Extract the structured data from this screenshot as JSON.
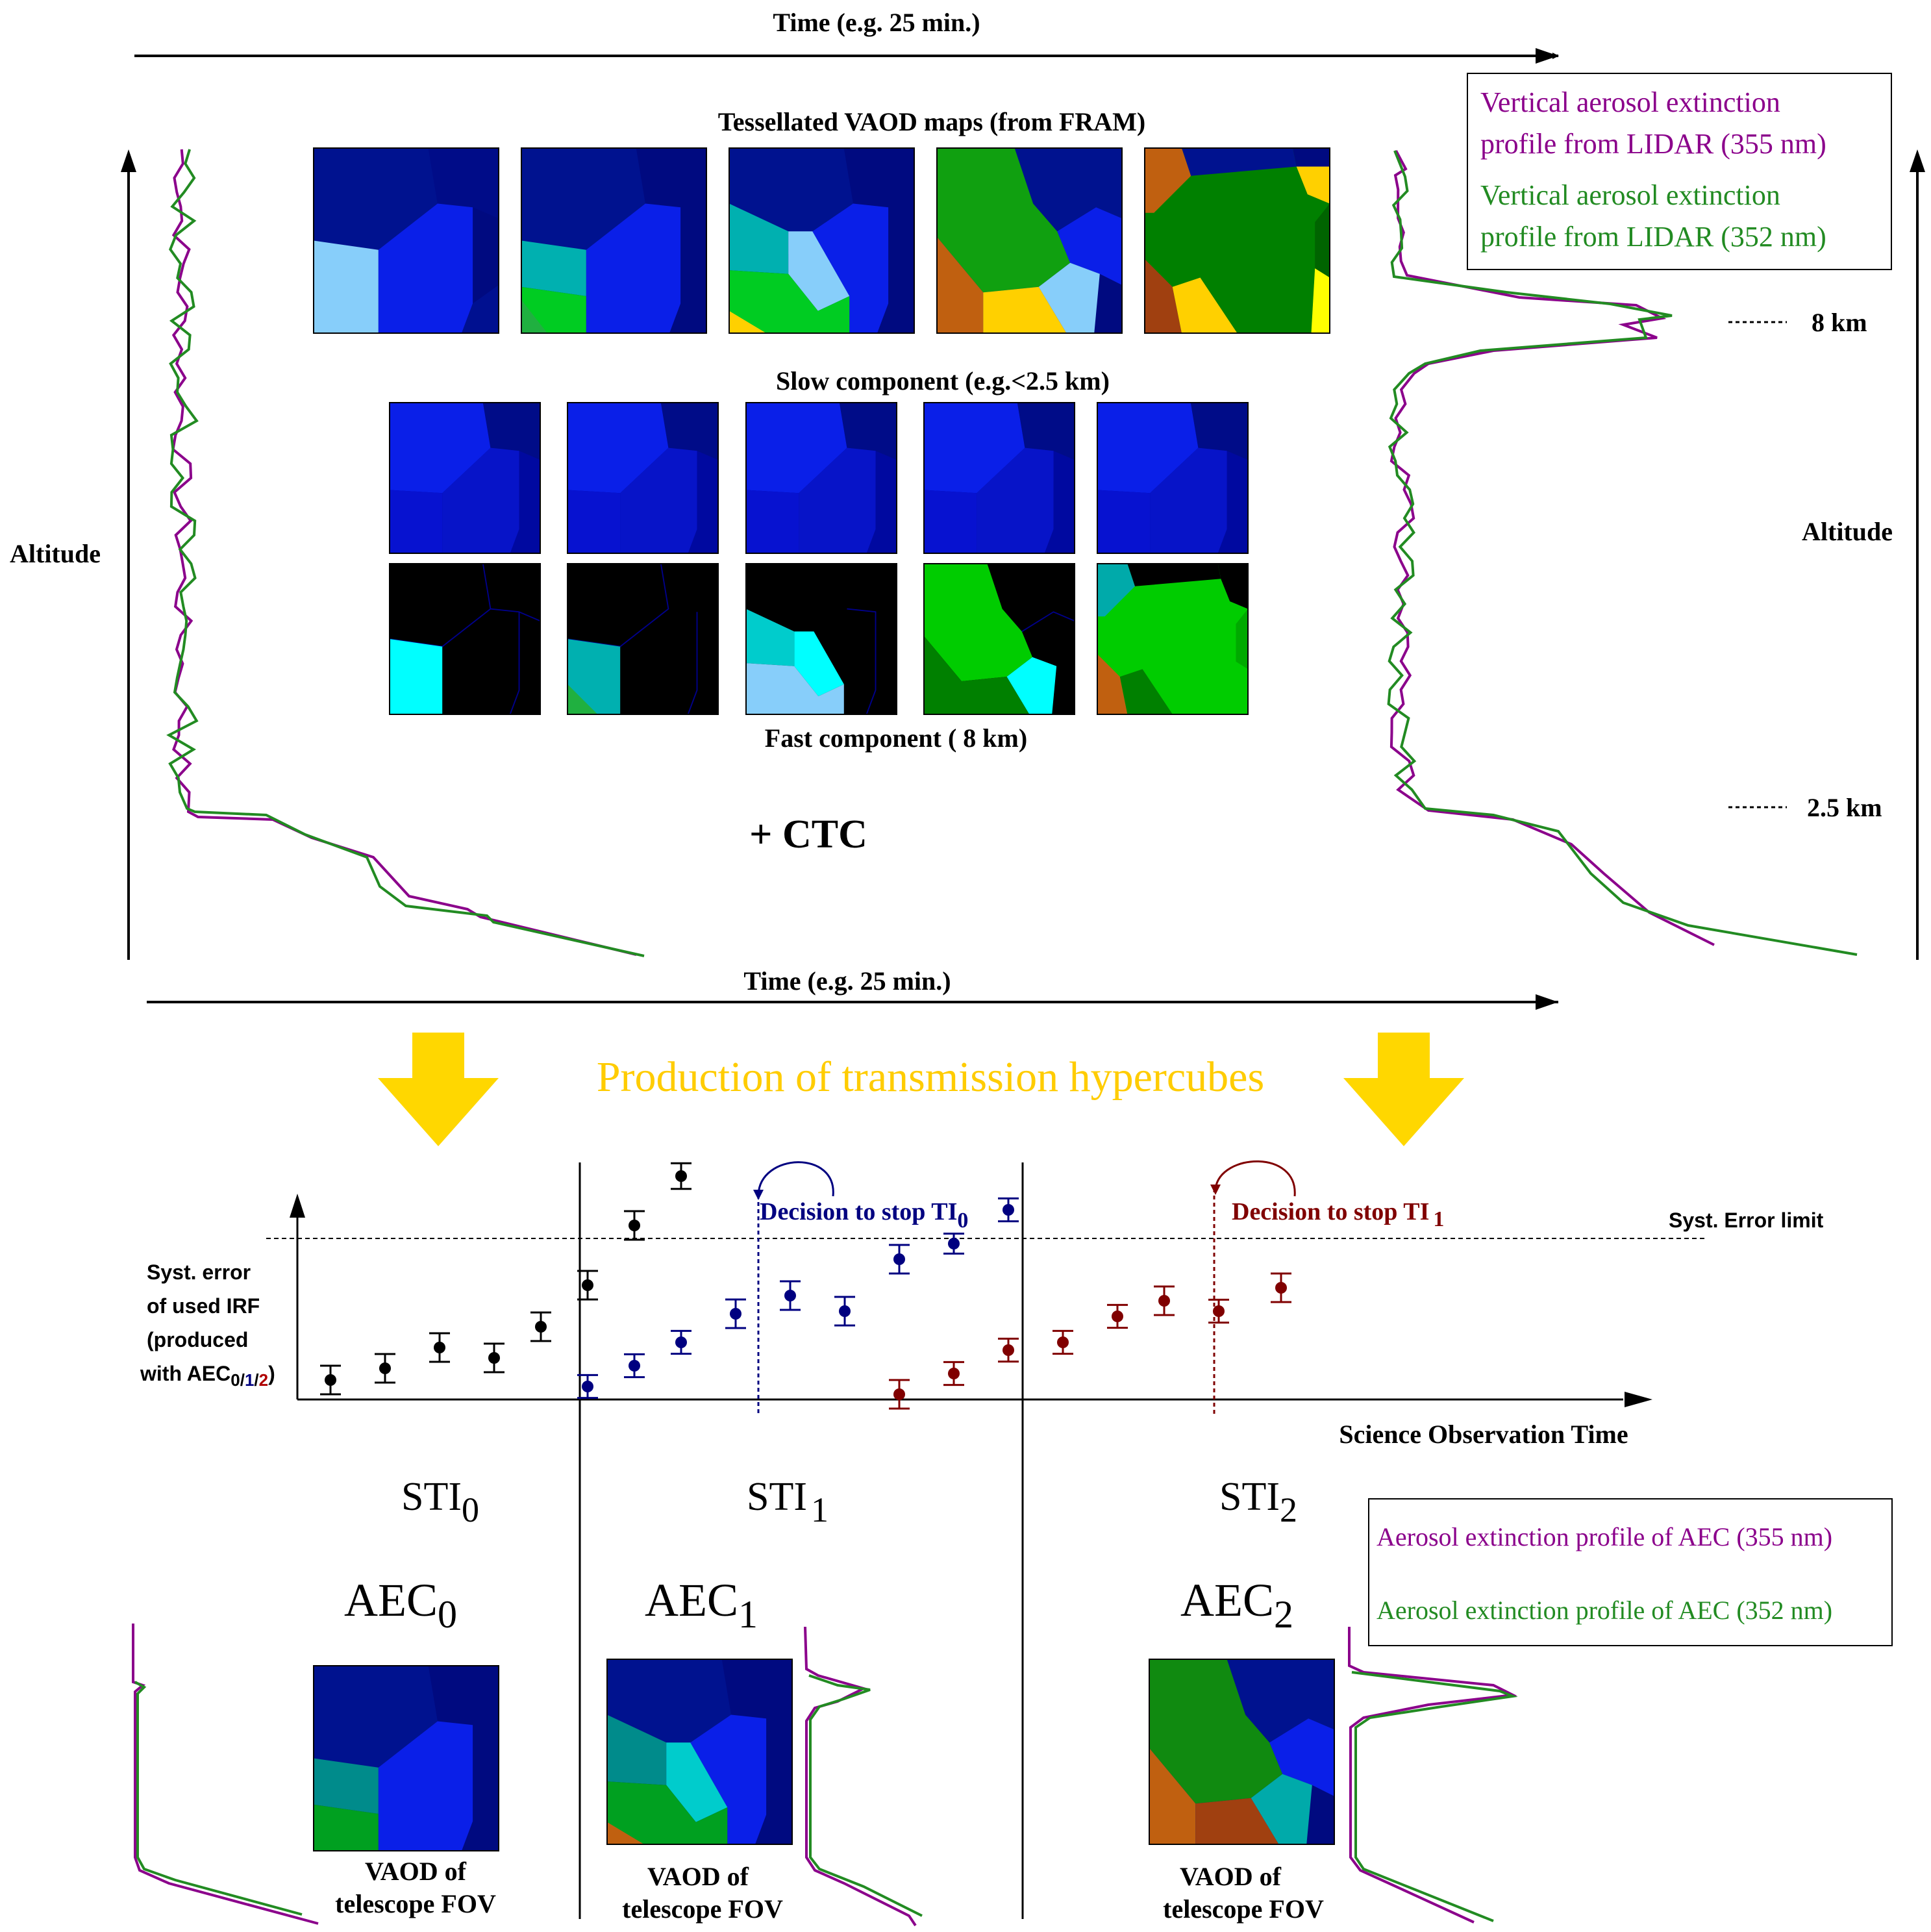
{
  "top": {
    "time_label_top": "Time (e.g. 25 min.)",
    "time_label_bottom": "Time (e.g. 25 min.)",
    "altitude_left": "Altitude",
    "altitude_right": "Altitude",
    "tessellated_title": "Tessellated VAOD maps (from FRAM)",
    "slow_title": "Slow component (e.g.<2.5 km)",
    "fast_title": "Fast component ( 8 km)",
    "ctc_label": "+ CTC",
    "km8_label": "8 km",
    "km25_label": "2.5 km",
    "legend_355": [
      "Vertical aerosol extinction",
      "profile from LIDAR (355 nm)"
    ],
    "legend_352": [
      "Vertical aerosol extinction",
      "profile from LIDAR (352 nm)"
    ]
  },
  "banner": "Production of transmission hypercubes",
  "plot": {
    "ylabel": [
      "Syst. error",
      "of used IRF",
      "(produced",
      "with AEC"
    ],
    "ylabel_sub": [
      "0",
      "/",
      "1",
      "/",
      "2"
    ],
    "ylabel_paren": ")",
    "xlabel": "Science Observation Time",
    "limit_label": "Syst. Error limit",
    "decision0": "Decision to stop TI",
    "decision0_sub": "0",
    "decision1": "Decision to stop TI",
    "decision1_sub": "1",
    "sti": [
      {
        "main": "STI",
        "sub": "0"
      },
      {
        "main": "STI",
        "sub": "1"
      },
      {
        "main": "STI",
        "sub": "2"
      }
    ],
    "aec": [
      {
        "main": "AEC",
        "sub": "0"
      },
      {
        "main": "AEC",
        "sub": "1"
      },
      {
        "main": "AEC",
        "sub": "2"
      }
    ],
    "vaod_label": [
      "VAOD of",
      "telescope FOV"
    ],
    "legend_bottom_355": "Aerosol extinction profile of AEC (355 nm)",
    "legend_bottom_352": "Aerosol extinction profile of AEC (352 nm)"
  },
  "chart_data": {
    "type": "scatter",
    "title": "",
    "xlabel": "Science Observation Time",
    "ylabel": "Syst. error of used IRF (produced with AEC 0/1/2)",
    "error_limit": 6.9,
    "ylim": [
      0,
      8.2
    ],
    "series": [
      {
        "name": "AEC0",
        "color": "#000000",
        "x": [
          0.2,
          0.9,
          1.6,
          2.3,
          2.9,
          3.5,
          4.1,
          4.7
        ],
        "y": [
          0.75,
          1.2,
          2.0,
          1.6,
          2.8,
          4.4,
          6.7,
          8.6
        ],
        "err": [
          1.0,
          1.0,
          1.0,
          1.0,
          1.0,
          1.0,
          1.0,
          0.9
        ]
      },
      {
        "name": "AEC1",
        "color": "#000080",
        "x": [
          3.5,
          4.1,
          4.7,
          5.4,
          6.1,
          6.8,
          7.5,
          8.2,
          8.9
        ],
        "y": [
          0.5,
          1.3,
          2.2,
          3.3,
          4.0,
          3.4,
          5.4,
          6.0,
          7.3
        ],
        "err": [
          0.8,
          0.8,
          0.8,
          1.0,
          1.0,
          1.0,
          1.0,
          0.7,
          0.8
        ]
      },
      {
        "name": "AEC2",
        "color": "#800000",
        "x": [
          7.5,
          8.2,
          8.9,
          9.6,
          10.3,
          10.9,
          11.6,
          12.4
        ],
        "y": [
          0.2,
          1.0,
          1.9,
          2.2,
          3.2,
          3.8,
          3.4,
          4.3
        ],
        "err": [
          1.0,
          0.8,
          0.8,
          0.8,
          0.8,
          1.0,
          0.8,
          1.0
        ]
      }
    ]
  },
  "colors": {
    "purple": "#8b008b",
    "green": "#228b22",
    "banner": "#ffcc00",
    "arrow": "#ffd700",
    "darkblue": "#000080",
    "darkred": "#800000"
  }
}
